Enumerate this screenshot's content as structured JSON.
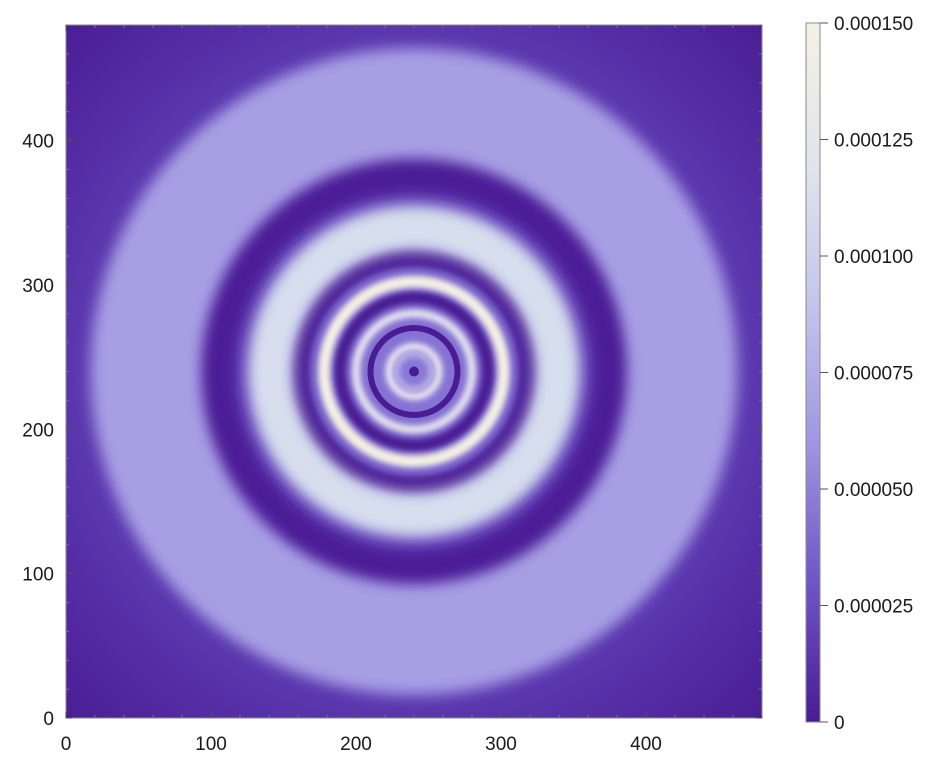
{
  "chart_data": {
    "type": "heatmap",
    "title": "",
    "xlabel": "",
    "ylabel": "",
    "xlim": [
      0,
      480
    ],
    "ylim": [
      0,
      480
    ],
    "x_ticks": [
      0,
      100,
      200,
      300,
      400
    ],
    "y_ticks": [
      0,
      100,
      200,
      300,
      400
    ],
    "x_tick_labels": [
      "0",
      "100",
      "200",
      "300",
      "400"
    ],
    "y_tick_labels": [
      "0",
      "100",
      "200",
      "300",
      "400"
    ],
    "field": {
      "pattern": "concentric-rings",
      "center": [
        240,
        240
      ],
      "rings": [
        {
          "name": "center-dot",
          "radius": 0,
          "kind": "dark"
        },
        {
          "name": "ring-1",
          "radius": 17,
          "kind": "bright"
        },
        {
          "name": "ring-2",
          "radius": 30,
          "kind": "dark"
        },
        {
          "name": "ring-3",
          "radius": 40,
          "kind": "bright"
        },
        {
          "name": "ring-4",
          "radius": 51,
          "kind": "dark"
        },
        {
          "name": "ring-5",
          "radius": 62,
          "kind": "bright"
        },
        {
          "name": "ring-6",
          "radius": 79,
          "kind": "dark"
        },
        {
          "name": "ring-7",
          "radius": 99,
          "kind": "bright"
        },
        {
          "name": "ring-8",
          "radius": 137,
          "kind": "dark"
        },
        {
          "name": "ring-9",
          "radius": 185,
          "kind": "bright"
        }
      ]
    },
    "colorbar": {
      "min": 0,
      "max": 0.00015,
      "ticks": [
        0,
        2.5e-05,
        5e-05,
        7.5e-05,
        0.0001,
        0.000125,
        0.00015
      ],
      "tick_labels": [
        "0",
        "0.000025",
        "0.000050",
        "0.000075",
        "0.000100",
        "0.000125",
        "0.000150"
      ],
      "colors": [
        "#4a1c93",
        "#6f55c6",
        "#9f96e0",
        "#c3c6ec",
        "#e0e5ec",
        "#f4f1e4"
      ]
    }
  }
}
